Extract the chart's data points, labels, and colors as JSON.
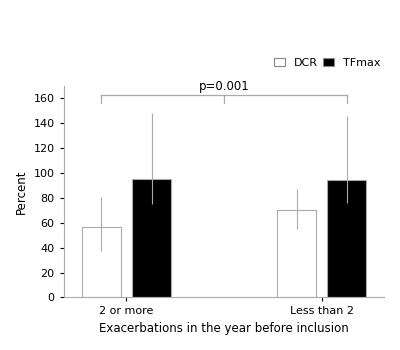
{
  "groups": [
    "2 or more",
    "Less than 2"
  ],
  "dcr_values": [
    57,
    70
  ],
  "tfmax_values": [
    95,
    94
  ],
  "dcr_errors_upper": [
    24,
    17
  ],
  "dcr_errors_lower": [
    20,
    15
  ],
  "tfmax_errors_upper": [
    53,
    52
  ],
  "tfmax_errors_lower": [
    20,
    18
  ],
  "dcr_color": "#ffffff",
  "tfmax_color": "#000000",
  "bar_edge_color": "#aaaaaa",
  "error_color": "#aaaaaa",
  "ylabel": "Percent",
  "xlabel": "Exacerbations in the year before inclusion",
  "ylim": [
    0,
    170
  ],
  "yticks": [
    0,
    20,
    40,
    60,
    80,
    100,
    120,
    140,
    160
  ],
  "bar_width": 0.28,
  "p_text": "p=0.001",
  "legend_dcr": "DCR",
  "legend_tfmax": "TFmax",
  "axis_fontsize": 8.5,
  "tick_fontsize": 8,
  "legend_fontsize": 8
}
